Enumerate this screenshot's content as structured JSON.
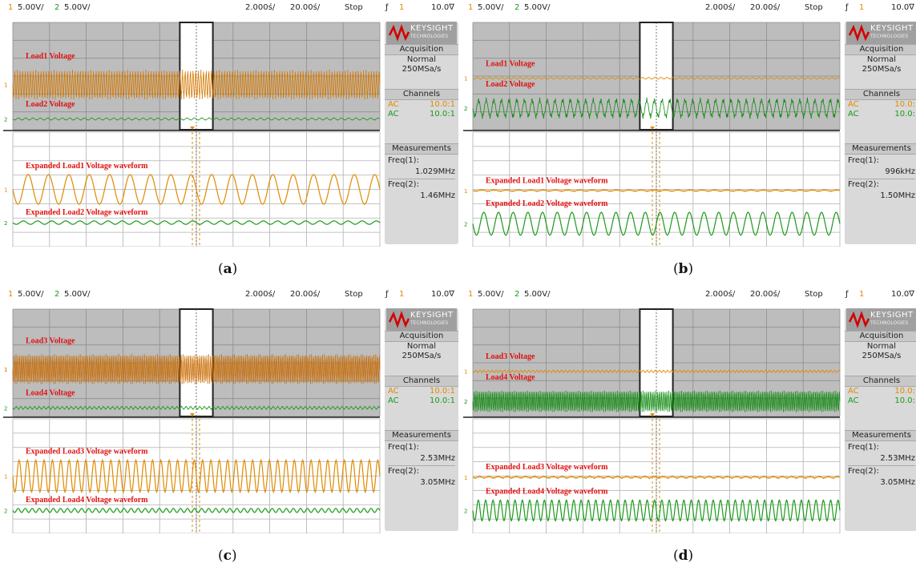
{
  "chart_data": [
    {
      "type": "line",
      "panel": "(a)",
      "caption": "a",
      "header": {
        "ch1_num": "1",
        "ch1_scale": "5.00V/",
        "ch2_num": "2",
        "ch2_scale": "5.00V/",
        "time_pos": "2.000ś/",
        "time_scale": "20.00ś/",
        "run_state": "Stop",
        "trig_icon": "ƒ",
        "trig_ch": "1",
        "trig_level": "10.0∇"
      },
      "traces": [
        {
          "name": "Load1 Voltage",
          "color": "#d47800",
          "kind": "band",
          "row": "upper",
          "offset": 0.58,
          "amp": 0.14,
          "cycles": 140
        },
        {
          "name": "Load2 Voltage",
          "color": "#1a9a1a",
          "kind": "band",
          "row": "upper",
          "offset": 0.9,
          "amp": 0.012,
          "cycles": 50
        },
        {
          "name": "Expanded Load1 Voltage waveform",
          "color": "#e08a00",
          "kind": "sine",
          "row": "lower",
          "offset": 0.5,
          "amp": 0.13,
          "cycles": 18
        },
        {
          "name": "Expanded Load2 Voltage waveform",
          "color": "#1a9a1a",
          "kind": "sine",
          "row": "lower",
          "offset": 0.79,
          "amp": 0.015,
          "cycles": 26
        }
      ],
      "side": {
        "logo": "KEYSIGHT",
        "logo_sub": "TECHNOLOGIES",
        "acq_title": "Acquisition",
        "acq_mode": "Normal",
        "acq_rate": "250MSa/s",
        "chan_title": "Channels",
        "chan1_cpl": "AC",
        "chan1_probe": "10.0:1",
        "chan2_cpl": "AC",
        "chan2_probe": "10.0:1",
        "meas_title": "Measurements",
        "freq1_label": "Freq(1):",
        "freq1_val": "1.029MHz",
        "freq2_label": "Freq(2):",
        "freq2_val": "1.46MHz"
      }
    },
    {
      "type": "line",
      "panel": "(b)",
      "caption": "b",
      "header": {
        "ch1_num": "1",
        "ch1_scale": "5.00V/",
        "ch2_num": "2",
        "ch2_scale": "5.00V/",
        "time_pos": "2.000ś/",
        "time_scale": "20.00ś/",
        "run_state": "Stop",
        "trig_icon": "ƒ",
        "trig_ch": "1",
        "trig_level": "10.0∇"
      },
      "traces": [
        {
          "name": "Load1 Voltage",
          "color": "#e08a00",
          "kind": "band",
          "row": "upper",
          "offset": 0.52,
          "amp": 0.01,
          "cycles": 60
        },
        {
          "name": "Load2 Voltage",
          "color": "#128a12",
          "kind": "band",
          "row": "upper",
          "offset": 0.8,
          "amp": 0.1,
          "cycles": 48
        },
        {
          "name": "Expanded Load1 Voltage waveform",
          "color": "#e08a00",
          "kind": "flat",
          "row": "lower",
          "offset": 0.51,
          "amp": 0.01,
          "cycles": 30
        },
        {
          "name": "Expanded Load2 Voltage waveform",
          "color": "#1a9a1a",
          "kind": "sine",
          "row": "lower",
          "offset": 0.8,
          "amp": 0.1,
          "cycles": 25
        }
      ],
      "side": {
        "logo": "KEYSIGHT",
        "logo_sub": "TECHNOLOGIES",
        "acq_title": "Acquisition",
        "acq_mode": "Normal",
        "acq_rate": "250MSa/s",
        "chan_title": "Channels",
        "chan1_cpl": "AC",
        "chan1_probe": "10.0:",
        "chan2_cpl": "AC",
        "chan2_probe": "10.0:",
        "meas_title": "Measurements",
        "freq1_label": "Freq(1):",
        "freq1_val": "996kHz",
        "freq2_label": "Freq(2):",
        "freq2_val": "1.50MHz"
      }
    },
    {
      "type": "line",
      "panel": "(c)",
      "caption": "c",
      "header": {
        "ch1_num": "1",
        "ch1_scale": "5.00V/",
        "ch2_num": "2",
        "ch2_scale": "5.00V/",
        "time_pos": "2.000ś/",
        "time_scale": "20.00ś/",
        "run_state": "Stop",
        "trig_icon": "ƒ",
        "trig_ch": "1",
        "trig_level": "10.0∇"
      },
      "traces": [
        {
          "name": "Load3 Voltage",
          "color": "#c86a00",
          "kind": "band",
          "row": "upper",
          "offset": 0.56,
          "amp": 0.14,
          "cycles": 200
        },
        {
          "name": "Load4 Voltage",
          "color": "#1a9a1a",
          "kind": "band",
          "row": "upper",
          "offset": 0.92,
          "amp": 0.015,
          "cycles": 80
        },
        {
          "name": "Expanded Load3 Voltage waveform",
          "color": "#e08a00",
          "kind": "sine",
          "row": "lower",
          "offset": 0.5,
          "amp": 0.14,
          "cycles": 44
        },
        {
          "name": "Expanded Load4 Voltage waveform",
          "color": "#1a9a1a",
          "kind": "sine",
          "row": "lower",
          "offset": 0.8,
          "amp": 0.018,
          "cycles": 52
        }
      ],
      "side": {
        "logo": "KEYSIGHT",
        "logo_sub": "TECHNOLOGIES",
        "acq_title": "Acquisition",
        "acq_mode": "Normal",
        "acq_rate": "250MSa/s",
        "chan_title": "Channels",
        "chan1_cpl": "AC",
        "chan1_probe": "10.0:1",
        "chan2_cpl": "AC",
        "chan2_probe": "10.0:1",
        "meas_title": "Measurements",
        "freq1_label": "Freq(1):",
        "freq1_val": "2.53MHz",
        "freq2_label": "Freq(2):",
        "freq2_val": "3.05MHz"
      }
    },
    {
      "type": "line",
      "panel": "(d)",
      "caption": "d",
      "header": {
        "ch1_num": "1",
        "ch1_scale": "5.00V/",
        "ch2_num": "2",
        "ch2_scale": "5.00V/",
        "time_pos": "2.000ś/",
        "time_scale": "20.00ś/",
        "run_state": "Stop",
        "trig_icon": "ƒ",
        "trig_ch": "1",
        "trig_level": "10.0∇"
      },
      "traces": [
        {
          "name": "Load3 Voltage",
          "color": "#e08a00",
          "kind": "band",
          "row": "upper",
          "offset": 0.58,
          "amp": 0.012,
          "cycles": 90
        },
        {
          "name": "Load4 Voltage",
          "color": "#128a12",
          "kind": "band",
          "row": "upper",
          "offset": 0.86,
          "amp": 0.1,
          "cycles": 200
        },
        {
          "name": "Expanded Load3 Voltage waveform",
          "color": "#e08a00",
          "kind": "flat",
          "row": "lower",
          "offset": 0.51,
          "amp": 0.012,
          "cycles": 40
        },
        {
          "name": "Expanded Load4 Voltage waveform",
          "color": "#1a9a1a",
          "kind": "sine",
          "row": "lower",
          "offset": 0.8,
          "amp": 0.09,
          "cycles": 50
        }
      ],
      "side": {
        "logo": "KEYSIGHT",
        "logo_sub": "TECHNOLOGIES",
        "acq_title": "Acquisition",
        "acq_mode": "Normal",
        "acq_rate": "250MSa/s",
        "chan_title": "Channels",
        "chan1_cpl": "AC",
        "chan1_probe": "10.0:",
        "chan2_cpl": "AC",
        "chan2_probe": "10.0:",
        "meas_title": "Measurements",
        "freq1_label": "Freq(1):",
        "freq1_val": "2.53MHz",
        "freq2_label": "Freq(2):",
        "freq2_val": "3.05MHz"
      }
    }
  ]
}
